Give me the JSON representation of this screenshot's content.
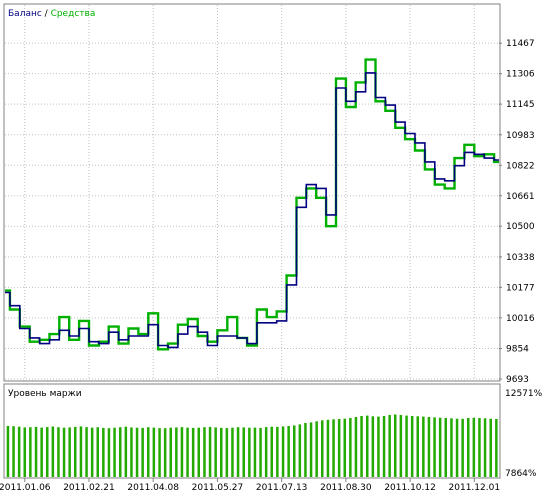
{
  "legend": {
    "balance_label": "Баланс",
    "separator": " / ",
    "equity_label": "Средства"
  },
  "colors": {
    "balance": "#000080",
    "equity": "#00b000",
    "margin_bars": "#22aa00",
    "frame": "#808080",
    "background": "#ffffff",
    "text": "#000000",
    "grid": "#c0c0c0"
  },
  "chart_data": [
    {
      "type": "line",
      "title": "",
      "legend_position": "top-left",
      "grid": true,
      "grid_style": "dotted",
      "yaxis_side": "right",
      "ylim": [
        9693,
        11600
      ],
      "y_ticks": [
        11467,
        11306,
        11145,
        10983,
        10822,
        10661,
        10500,
        10338,
        10177,
        10016,
        9854,
        9693
      ],
      "x_ticks": [
        {
          "x": 0.04,
          "label": "2011.01.06"
        },
        {
          "x": 0.17,
          "label": "2011.02.21"
        },
        {
          "x": 0.3,
          "label": "2011.04.08"
        },
        {
          "x": 0.43,
          "label": "2011.05.27"
        },
        {
          "x": 0.56,
          "label": "2011.07.13"
        },
        {
          "x": 0.69,
          "label": "2011.08.30"
        },
        {
          "x": 0.82,
          "label": "2011.10.12"
        },
        {
          "x": 0.95,
          "label": "2011.12.01"
        }
      ],
      "series": [
        {
          "name": "Баланс",
          "x": [
            0,
            0.02,
            0.04,
            0.06,
            0.08,
            0.1,
            0.12,
            0.14,
            0.16,
            0.18,
            0.2,
            0.22,
            0.24,
            0.26,
            0.28,
            0.3,
            0.32,
            0.34,
            0.36,
            0.38,
            0.4,
            0.42,
            0.44,
            0.46,
            0.48,
            0.5,
            0.52,
            0.54,
            0.56,
            0.58,
            0.6,
            0.62,
            0.64,
            0.66,
            0.68,
            0.7,
            0.72,
            0.74,
            0.76,
            0.78,
            0.8,
            0.82,
            0.84,
            0.86,
            0.88,
            0.9,
            0.92,
            0.94,
            0.96,
            0.98,
            1.0
          ],
          "values": [
            10150,
            10080,
            9960,
            9910,
            9880,
            9900,
            9950,
            9920,
            9960,
            9890,
            9880,
            9940,
            9900,
            9920,
            9920,
            9980,
            9870,
            9860,
            9930,
            9970,
            9940,
            9870,
            9920,
            9920,
            9910,
            9880,
            9990,
            9990,
            10000,
            10190,
            10600,
            10720,
            10700,
            10560,
            11230,
            11160,
            11210,
            11310,
            11180,
            11140,
            11050,
            10990,
            10940,
            10840,
            10750,
            10740,
            10820,
            10890,
            10880,
            10860,
            10850
          ]
        },
        {
          "name": "Средства",
          "x": [
            0,
            0.02,
            0.04,
            0.06,
            0.08,
            0.1,
            0.12,
            0.14,
            0.16,
            0.18,
            0.2,
            0.22,
            0.24,
            0.26,
            0.28,
            0.3,
            0.32,
            0.34,
            0.36,
            0.38,
            0.4,
            0.42,
            0.44,
            0.46,
            0.48,
            0.5,
            0.52,
            0.54,
            0.56,
            0.58,
            0.6,
            0.62,
            0.64,
            0.66,
            0.68,
            0.7,
            0.72,
            0.74,
            0.76,
            0.78,
            0.8,
            0.82,
            0.84,
            0.86,
            0.88,
            0.9,
            0.92,
            0.94,
            0.96,
            0.98,
            1.0
          ],
          "values": [
            10160,
            10060,
            9970,
            9890,
            9900,
            9930,
            10020,
            9900,
            10000,
            9870,
            9890,
            9970,
            9880,
            9960,
            9930,
            10040,
            9850,
            9880,
            9980,
            10010,
            9920,
            9890,
            9950,
            10020,
            9910,
            9870,
            10060,
            10020,
            10050,
            10240,
            10650,
            10700,
            10650,
            10500,
            11280,
            11130,
            11260,
            11380,
            11160,
            11110,
            11020,
            10960,
            10900,
            10800,
            10720,
            10700,
            10860,
            10930,
            10870,
            10880,
            10840
          ]
        }
      ]
    },
    {
      "type": "bar",
      "title": "Уровень маржи",
      "ylim": [
        7864,
        12571
      ],
      "y_ticks_labels": [
        "12571%",
        "7864%"
      ],
      "bar_count": 88,
      "values": [
        10910,
        10890,
        10860,
        10820,
        10830,
        10850,
        10810,
        10840,
        10870,
        10830,
        10800,
        10820,
        10850,
        10880,
        10840,
        10810,
        10830,
        10790,
        10770,
        10800,
        10830,
        10860,
        10820,
        10800,
        10790,
        10830,
        10810,
        10780,
        10770,
        10800,
        10820,
        10840,
        10810,
        10790,
        10800,
        10830,
        10850,
        10820,
        10790,
        10780,
        10800,
        10830,
        10820,
        10800,
        10810,
        10790,
        10840,
        10860,
        10850,
        10880,
        10900,
        10940,
        11000,
        11080,
        11120,
        11180,
        11240,
        11270,
        11300,
        11320,
        11340,
        11380,
        11440,
        11500,
        11520,
        11480,
        11460,
        11500,
        11560,
        11590,
        11560,
        11520,
        11500,
        11480,
        11460,
        11440,
        11420,
        11400,
        11380,
        11360,
        11340,
        11330,
        11380,
        11400,
        11380,
        11360,
        11340,
        11320
      ]
    }
  ]
}
